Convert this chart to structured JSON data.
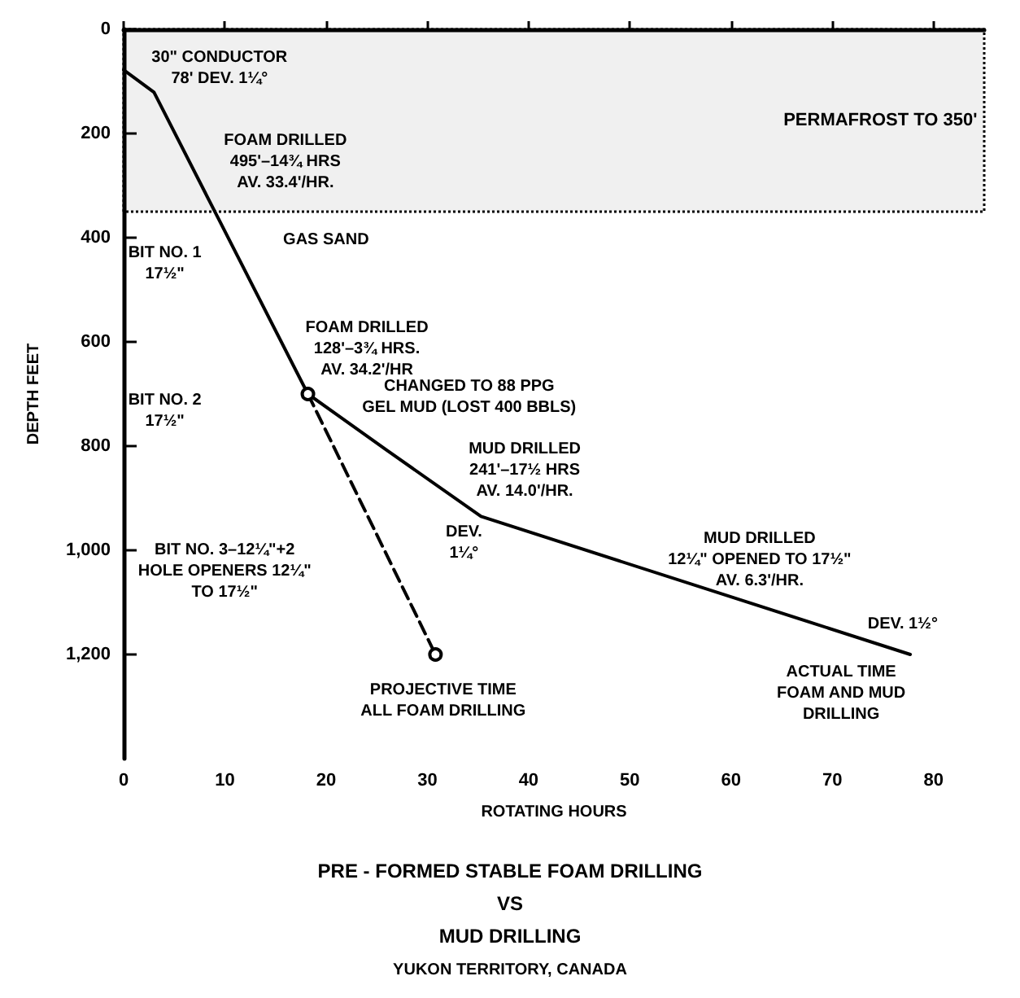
{
  "chart_data": {
    "type": "line",
    "title": "PRE - FORMED STABLE FOAM DRILLING\nVS\nMUD DRILLING",
    "subtitle": "YUKON TERRITORY, CANADA",
    "xlabel": "ROTATING HOURS",
    "ylabel": "DEPTH FEET",
    "xlim": [
      0,
      85
    ],
    "xticks": [
      0,
      10,
      20,
      30,
      40,
      50,
      60,
      70,
      80
    ],
    "ylim": [
      1400,
      0
    ],
    "yticks": [
      0,
      200,
      400,
      600,
      800,
      {
        "value": 1000,
        "label": "1,000"
      },
      {
        "value": 1200,
        "label": "1,200"
      }
    ],
    "grid": false,
    "series": [
      {
        "color": "#000000",
        "x": [
          0,
          3,
          18.2,
          26,
          35.3,
          77.7
        ],
        "values": [
          78,
          121,
          700,
          808,
          935,
          1200
        ],
        "line_style": "solid",
        "marker": "none"
      },
      {
        "color": "#000000",
        "x": [
          18.2,
          30.8
        ],
        "values": [
          700,
          1200
        ],
        "line_style": "dashed",
        "marker": "circle"
      }
    ],
    "bands": [
      {
        "axis": "y",
        "from": 0,
        "to": 350,
        "label": "PERMAFROST TO 350'"
      }
    ],
    "annotations": [
      "30\" CONDUCTOR\n78' DEV. 1¼°",
      "FOAM DRILLED\n495'–14¾ HRS\nAV. 33.4'/HR.",
      "GAS SAND",
      "FOAM DRILLED\n128'–3¾ HRS.\nAV. 34.2'/HR",
      "CHANGED TO 88 PPG\nGEL MUD (LOST 400 BBLS)",
      "MUD DRILLED\n241'–17½ HRS\nAV. 14.0'/HR.",
      "DEV.\n1¼°",
      "MUD DRILLED\n12¼\" OPENED TO 17½\"\nAV. 6.3'/HR.",
      "DEV. 1½°",
      "ACTUAL TIME\nFOAM AND MUD\nDRILLING",
      "PROJECTIVE TIME\nALL FOAM DRILLING",
      "BIT NO. 1\n17½\"",
      "BIT NO. 2\n17½\"",
      "BIT NO. 3–12¼\"+2\nHOLE OPENERS 12¼\"\nTO 17½\""
    ]
  }
}
